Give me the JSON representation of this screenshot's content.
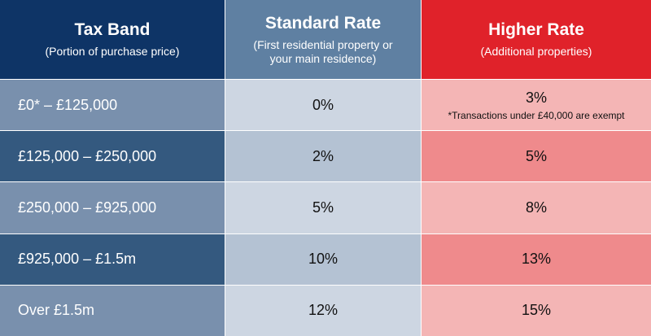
{
  "table": {
    "header": [
      {
        "title": "Tax Band",
        "subtitle": "(Portion of purchase price)"
      },
      {
        "title": "Standard Rate",
        "subtitle": "(First residential property or your main residence)"
      },
      {
        "title": "Higher Rate",
        "subtitle": "(Additional properties)"
      }
    ],
    "rows": [
      {
        "band": "£0* – £125,000",
        "standard": "0%",
        "higher": "3%",
        "note": "*Transactions under £40,000 are exempt"
      },
      {
        "band": "£125,000 – £250,000",
        "standard": "2%",
        "higher": "5%"
      },
      {
        "band": "£250,000 – £925,000",
        "standard": "5%",
        "higher": "8%"
      },
      {
        "band": "£925,000 – £1.5m",
        "standard": "10%",
        "higher": "13%"
      },
      {
        "band": "Over £1.5m",
        "standard": "12%",
        "higher": "15%"
      }
    ]
  }
}
